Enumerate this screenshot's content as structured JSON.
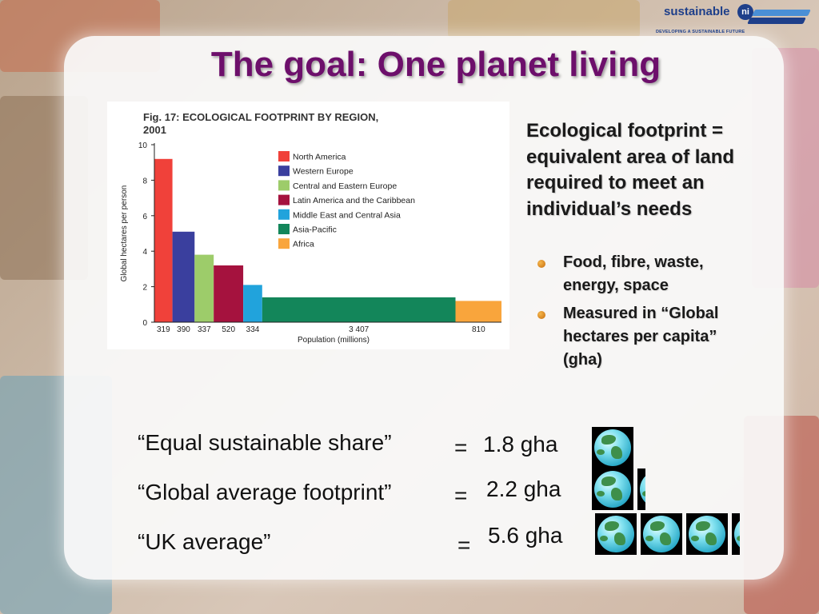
{
  "header": {
    "logo_text": "sustainable",
    "logo_badge": "ni",
    "logo_tagline": "DEVELOPING A SUSTAINABLE FUTURE",
    "title": "The goal: One planet living"
  },
  "colors": {
    "title": "#6d0f6b",
    "logo_blue": "#1e3f8a",
    "bullet_orange": "#e08a20"
  },
  "definition": {
    "text": "Ecological footprint = equivalent area of land required to meet an individual’s needs",
    "bullets": [
      "Food, fibre, waste, energy, space",
      "Measured in “Global hectares per capita” (gha)"
    ]
  },
  "comparisons": [
    {
      "label": "“Equal sustainable share”",
      "eq": "=",
      "value": "1.8 gha",
      "planets": 1.0
    },
    {
      "label": "“Global average footprint”",
      "eq": "=",
      "value": "2.2 gha",
      "planets": 1.2
    },
    {
      "label": "“UK average”",
      "eq": "=",
      "value": "5.6 gha",
      "planets": 3.2
    }
  ],
  "chart_data": {
    "type": "bar",
    "title": "Fig. 17: ECOLOGICAL FOOTPRINT BY REGION, 2001",
    "xlabel": "Population (millions)",
    "ylabel": "Global hectares per person",
    "ylim": [
      0,
      10
    ],
    "yticks": [
      0,
      2,
      4,
      6,
      8,
      10
    ],
    "variable_width": true,
    "legend_position": "top-right",
    "series": [
      {
        "name": "North America",
        "population": 319,
        "width_label": "319",
        "value": 9.2,
        "color": "#f0413a"
      },
      {
        "name": "Western Europe",
        "population": 390,
        "width_label": "390",
        "value": 5.1,
        "color": "#3a3f9e"
      },
      {
        "name": "Central and Eastern Europe",
        "population": 337,
        "width_label": "337",
        "value": 3.8,
        "color": "#9dcc6a"
      },
      {
        "name": "Latin America and the Caribbean",
        "population": 520,
        "width_label": "520",
        "value": 3.2,
        "color": "#a5123e"
      },
      {
        "name": "Middle East and Central Asia",
        "population": 334,
        "width_label": "334",
        "value": 2.1,
        "color": "#21a3dc"
      },
      {
        "name": "Asia-Pacific",
        "population": 3407,
        "width_label": "3 407",
        "value": 1.4,
        "color": "#13865a"
      },
      {
        "name": "Africa",
        "population": 810,
        "width_label": "810",
        "value": 1.2,
        "color": "#f9a53c"
      }
    ]
  }
}
